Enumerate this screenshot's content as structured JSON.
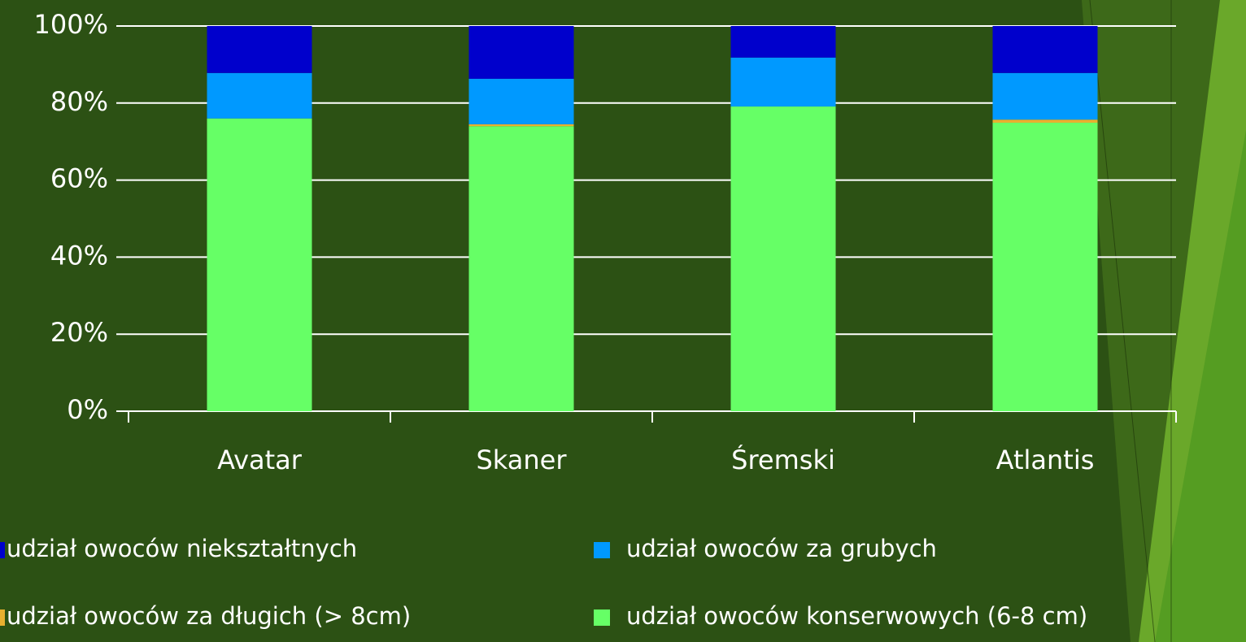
{
  "chart_data": {
    "type": "stacked_bar",
    "categories": [
      "Avatar",
      "Skaner",
      "Śremski",
      "Atlantis"
    ],
    "series": [
      {
        "name": "udział owoców konserwowych (6-8 cm)",
        "color": "#66ff66",
        "values": [
          76,
          74,
          79.1,
          74.9
        ]
      },
      {
        "name": "udział owoców za długich (> 8cm)",
        "color": "#e8b030",
        "values": [
          0,
          0.5,
          0,
          0.8
        ]
      },
      {
        "name": "udział owoców za grubych",
        "color": "#0099ff",
        "values": [
          11.8,
          11.8,
          12.7,
          12.1
        ]
      },
      {
        "name": "udział owoców niekształtnych",
        "color": "#0000cc",
        "values": [
          12.2,
          13.7,
          8.2,
          12.2
        ]
      }
    ],
    "ylim": [
      0,
      100
    ],
    "yticks": [
      {
        "value": 0,
        "label": "0%"
      },
      {
        "value": 20,
        "label": "20%"
      },
      {
        "value": 40,
        "label": "40%"
      },
      {
        "value": 60,
        "label": "60%"
      },
      {
        "value": 80,
        "label": "80%"
      },
      {
        "value": 100,
        "label": "100%"
      }
    ],
    "grid": true
  }
}
